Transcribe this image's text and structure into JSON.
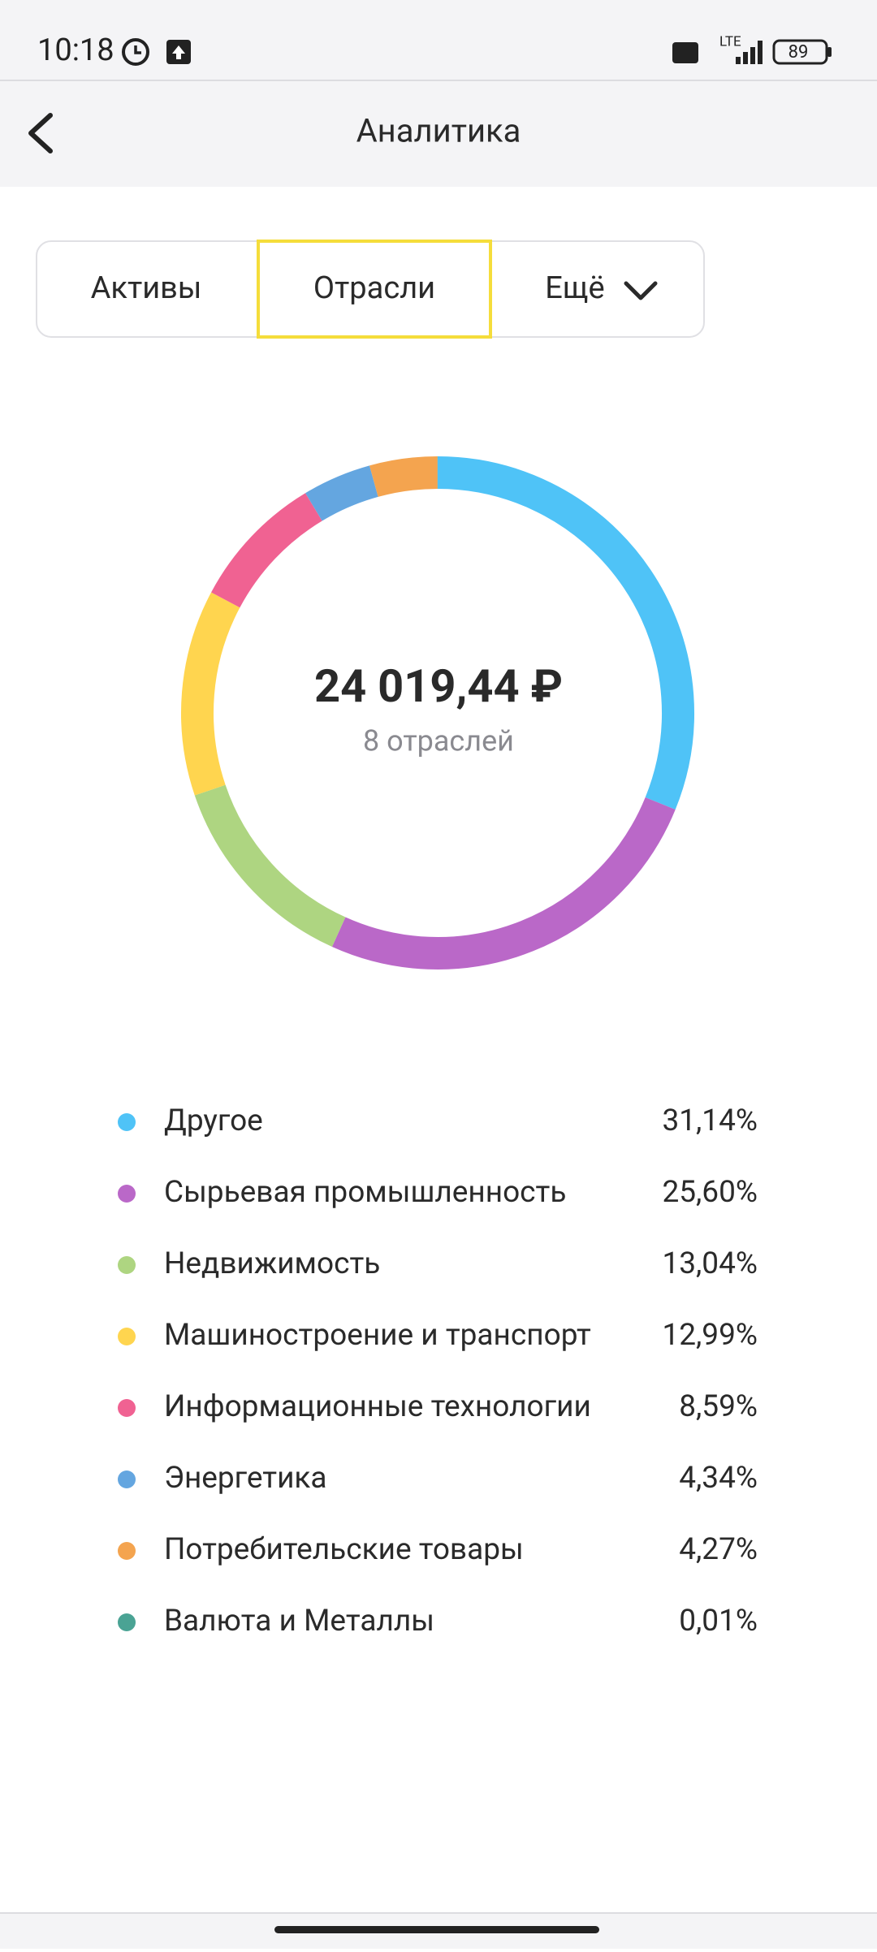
{
  "status_bar": {
    "time": "10:18",
    "network": "LTE",
    "battery": "89"
  },
  "header": {
    "title": "Аналитика"
  },
  "tabs": [
    "Активы",
    "Отрасли",
    "Ещё"
  ],
  "chart_data": {
    "type": "pie",
    "center_value": "24 019,44 ₽",
    "center_label": "8 отраслей",
    "categories": [
      "Другое",
      "Сырьевая промышленность",
      "Недвижимость",
      "Машиностроение и транспорт",
      "Информационные технологии",
      "Энергетика",
      "Потребительские товары",
      "Валюта и Металлы"
    ],
    "values": [
      31.14,
      25.6,
      13.04,
      12.99,
      8.59,
      4.34,
      4.27,
      0.01
    ],
    "value_labels": [
      "31,14%",
      "25,60%",
      "13,04%",
      "12,99%",
      "8,59%",
      "4,34%",
      "4,27%",
      "0,01%"
    ],
    "colors": [
      "#4fc3f7",
      "#ba68c8",
      "#aed581",
      "#ffd54f",
      "#f06292",
      "#64a6e0",
      "#f4a44f",
      "#4aa394"
    ]
  }
}
